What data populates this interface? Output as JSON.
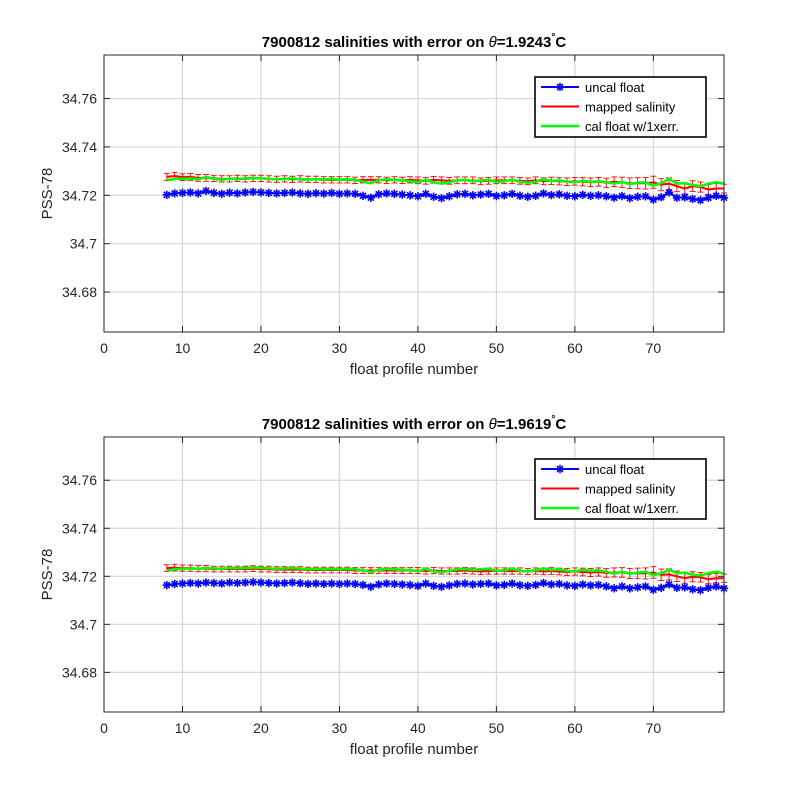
{
  "chart_data": [
    {
      "type": "line",
      "title": {
        "prefix": "7900812 salinities with error on ",
        "theta": "θ",
        "value": "=1.9243",
        "degree": "°",
        "unit": "C"
      },
      "xlabel": "float profile number",
      "ylabel": "PSS-78",
      "xlim": [
        0,
        79
      ],
      "ylim": [
        34.6635,
        34.778
      ],
      "xticks": [
        0,
        10,
        20,
        30,
        40,
        50,
        60,
        70
      ],
      "xtick_labels": [
        "0",
        "10",
        "20",
        "30",
        "40",
        "50",
        "60",
        "70"
      ],
      "yticks": [
        34.68,
        34.7,
        34.72,
        34.74,
        34.76
      ],
      "ytick_labels": [
        "34.68",
        "34.7",
        "34.72",
        "34.74",
        "34.76"
      ],
      "grid": true,
      "legend_position": "top-right",
      "legend": [
        "uncal float",
        "mapped salinity",
        "cal float w/1xerr."
      ],
      "colors": {
        "uncal": "#0000ff",
        "mapped": "#ff0000",
        "cal": "#00ff00"
      },
      "x_start": 8,
      "uncal_float": [
        34.7202,
        34.7208,
        34.721,
        34.7212,
        34.7208,
        34.7218,
        34.721,
        34.7206,
        34.7211,
        34.7208,
        34.7212,
        34.7214,
        34.7212,
        34.721,
        34.7208,
        34.721,
        34.7212,
        34.7208,
        34.7206,
        34.7209,
        34.7207,
        34.721,
        34.7206,
        34.7208,
        34.7206,
        34.7198,
        34.719,
        34.7204,
        34.7208,
        34.7206,
        34.7203,
        34.72,
        34.7196,
        34.7206,
        34.7194,
        34.7188,
        34.7196,
        34.7204,
        34.7206,
        34.72,
        34.7203,
        34.7206,
        34.7197,
        34.72,
        34.7206,
        34.7198,
        34.7194,
        34.7198,
        34.7208,
        34.7201,
        34.7204,
        34.7198,
        34.7196,
        34.7202,
        34.7198,
        34.72,
        34.7196,
        34.719,
        34.7197,
        34.7188,
        34.7194,
        34.7196,
        34.7182,
        34.7192,
        34.7212,
        34.719,
        34.7192,
        34.7185,
        34.718,
        34.719,
        34.7198,
        34.719
      ],
      "mapped_salinity": [
        34.7276,
        34.728,
        34.7275,
        34.7276,
        34.7272,
        34.7272,
        34.727,
        34.7268,
        34.7268,
        34.727,
        34.7268,
        34.727,
        34.727,
        34.7268,
        34.7266,
        34.7268,
        34.7266,
        34.7268,
        34.7266,
        34.7266,
        34.7264,
        34.7264,
        34.7264,
        34.7264,
        34.7262,
        34.7264,
        34.7264,
        34.7264,
        34.7262,
        34.7264,
        34.7262,
        34.7264,
        34.7262,
        34.726,
        34.7264,
        34.7262,
        34.726,
        34.7262,
        34.7262,
        34.7262,
        34.7258,
        34.726,
        34.7262,
        34.7262,
        34.7262,
        34.726,
        34.7258,
        34.7262,
        34.7258,
        34.726,
        34.7258,
        34.7256,
        34.7258,
        34.7256,
        34.7254,
        34.7256,
        34.7252,
        34.7256,
        34.7254,
        34.725,
        34.725,
        34.725,
        34.7254,
        34.7244,
        34.7248,
        34.7238,
        34.7228,
        34.7238,
        34.7234,
        34.7224,
        34.7228,
        34.7228
      ],
      "mapped_error": [
        0.0015,
        0.0015,
        0.0014,
        0.0014,
        0.0014,
        0.0014,
        0.0013,
        0.0013,
        0.0013,
        0.0013,
        0.0013,
        0.0013,
        0.0013,
        0.0013,
        0.0013,
        0.0013,
        0.0013,
        0.0013,
        0.0013,
        0.0013,
        0.0013,
        0.0013,
        0.0013,
        0.0013,
        0.0013,
        0.0013,
        0.0013,
        0.0013,
        0.0013,
        0.0013,
        0.0013,
        0.0013,
        0.0014,
        0.0014,
        0.0014,
        0.0014,
        0.0014,
        0.0014,
        0.0014,
        0.0014,
        0.0014,
        0.0014,
        0.0014,
        0.0014,
        0.0014,
        0.0014,
        0.0014,
        0.0014,
        0.0014,
        0.0015,
        0.0015,
        0.0016,
        0.0016,
        0.0017,
        0.0018,
        0.0018,
        0.0019,
        0.002,
        0.0021,
        0.0022,
        0.0023,
        0.0024,
        0.0025,
        0.0025,
        0.0024,
        0.0023,
        0.0022,
        0.0022,
        0.0021,
        0.002,
        0.002,
        0.0018
      ],
      "cal_float": [
        34.7262,
        34.7268,
        34.7268,
        34.727,
        34.7266,
        34.7276,
        34.7268,
        34.7264,
        34.7269,
        34.7266,
        34.727,
        34.7272,
        34.727,
        34.7268,
        34.7266,
        34.7268,
        34.727,
        34.7266,
        34.7264,
        34.7267,
        34.7265,
        34.7268,
        34.7264,
        34.7266,
        34.7264,
        34.7256,
        34.725,
        34.7262,
        34.7266,
        34.7264,
        34.7261,
        34.7258,
        34.7254,
        34.7264,
        34.7254,
        34.7248,
        34.7254,
        34.7262,
        34.7264,
        34.7258,
        34.7261,
        34.7264,
        34.7255,
        34.7258,
        34.7264,
        34.7256,
        34.7252,
        34.7256,
        34.7266,
        34.7259,
        34.7262,
        34.7256,
        34.7254,
        34.726,
        34.7256,
        34.7258,
        34.7254,
        34.7248,
        34.7255,
        34.7246,
        34.7252,
        34.7254,
        34.724,
        34.725,
        34.7268,
        34.7248,
        34.725,
        34.7243,
        34.7238,
        34.7248,
        34.7254,
        34.7248
      ]
    },
    {
      "type": "line",
      "title": {
        "prefix": "7900812 salinities with error on ",
        "theta": "θ",
        "value": "=1.9619",
        "degree": "°",
        "unit": "C"
      },
      "xlabel": "float profile number",
      "ylabel": "PSS-78",
      "xlim": [
        0,
        79
      ],
      "ylim": [
        34.6635,
        34.778
      ],
      "xticks": [
        0,
        10,
        20,
        30,
        40,
        50,
        60,
        70
      ],
      "xtick_labels": [
        "0",
        "10",
        "20",
        "30",
        "40",
        "50",
        "60",
        "70"
      ],
      "yticks": [
        34.68,
        34.7,
        34.72,
        34.74,
        34.76
      ],
      "ytick_labels": [
        "34.68",
        "34.7",
        "34.72",
        "34.74",
        "34.76"
      ],
      "grid": true,
      "legend_position": "top-right",
      "legend": [
        "uncal float",
        "mapped salinity",
        "cal float w/1xerr."
      ],
      "colors": {
        "uncal": "#0000ff",
        "mapped": "#ff0000",
        "cal": "#00ff00"
      },
      "x_start": 8,
      "uncal_float": [
        34.7163,
        34.7168,
        34.717,
        34.7172,
        34.717,
        34.7174,
        34.7172,
        34.717,
        34.7174,
        34.7172,
        34.7174,
        34.7176,
        34.7174,
        34.7172,
        34.717,
        34.7172,
        34.7174,
        34.7171,
        34.7168,
        34.717,
        34.7168,
        34.717,
        34.7168,
        34.717,
        34.7168,
        34.7164,
        34.7156,
        34.7166,
        34.717,
        34.7168,
        34.7166,
        34.7164,
        34.716,
        34.717,
        34.716,
        34.7156,
        34.7162,
        34.7168,
        34.717,
        34.7166,
        34.7168,
        34.717,
        34.7162,
        34.7164,
        34.717,
        34.7163,
        34.716,
        34.7164,
        34.7172,
        34.7166,
        34.7168,
        34.7162,
        34.716,
        34.7166,
        34.7162,
        34.7164,
        34.7158,
        34.715,
        34.7158,
        34.715,
        34.7154,
        34.7158,
        34.7144,
        34.7152,
        34.7166,
        34.7152,
        34.7154,
        34.7146,
        34.7142,
        34.7152,
        34.7158,
        34.715
      ],
      "mapped_salinity": [
        34.7234,
        34.7236,
        34.7234,
        34.7234,
        34.7232,
        34.7232,
        34.723,
        34.723,
        34.723,
        34.723,
        34.723,
        34.7232,
        34.723,
        34.723,
        34.7228,
        34.7228,
        34.7228,
        34.7228,
        34.7226,
        34.7226,
        34.7226,
        34.7226,
        34.7226,
        34.7226,
        34.7224,
        34.7224,
        34.7224,
        34.7224,
        34.7224,
        34.7224,
        34.7224,
        34.7224,
        34.7224,
        34.7222,
        34.7224,
        34.7222,
        34.7222,
        34.7222,
        34.7224,
        34.7222,
        34.722,
        34.7222,
        34.7222,
        34.7222,
        34.7222,
        34.7222,
        34.722,
        34.7222,
        34.722,
        34.7222,
        34.722,
        34.7218,
        34.722,
        34.7218,
        34.7216,
        34.7218,
        34.7214,
        34.7216,
        34.7216,
        34.7212,
        34.7212,
        34.7212,
        34.7216,
        34.7206,
        34.7208,
        34.72,
        34.7192,
        34.7198,
        34.7196,
        34.7188,
        34.7192,
        34.7192
      ],
      "mapped_error": [
        0.0014,
        0.0014,
        0.0013,
        0.0013,
        0.0013,
        0.0013,
        0.0012,
        0.0012,
        0.0012,
        0.0012,
        0.0012,
        0.0012,
        0.0012,
        0.0012,
        0.0012,
        0.0012,
        0.0012,
        0.0012,
        0.0012,
        0.0012,
        0.0012,
        0.0012,
        0.0012,
        0.0012,
        0.0012,
        0.0012,
        0.0012,
        0.0012,
        0.0012,
        0.0012,
        0.0012,
        0.0012,
        0.0013,
        0.0013,
        0.0013,
        0.0013,
        0.0013,
        0.0013,
        0.0013,
        0.0013,
        0.0013,
        0.0013,
        0.0013,
        0.0013,
        0.0013,
        0.0013,
        0.0013,
        0.0013,
        0.0013,
        0.0014,
        0.0014,
        0.0015,
        0.0015,
        0.0016,
        0.0017,
        0.0017,
        0.0018,
        0.0019,
        0.002,
        0.0021,
        0.0022,
        0.0023,
        0.0024,
        0.0024,
        0.0023,
        0.0022,
        0.0021,
        0.0021,
        0.002,
        0.0019,
        0.0019,
        0.0017
      ],
      "cal_float": [
        34.7224,
        34.7229,
        34.7231,
        34.7233,
        34.7231,
        34.7235,
        34.7233,
        34.7231,
        34.7235,
        34.7233,
        34.7235,
        34.7237,
        34.7235,
        34.7233,
        34.7231,
        34.7233,
        34.7235,
        34.7232,
        34.7229,
        34.7231,
        34.7229,
        34.7231,
        34.7229,
        34.7231,
        34.7229,
        34.7225,
        34.7217,
        34.7227,
        34.7231,
        34.7229,
        34.7227,
        34.7225,
        34.7221,
        34.7231,
        34.7221,
        34.7217,
        34.7223,
        34.7229,
        34.7231,
        34.7227,
        34.7229,
        34.7231,
        34.7223,
        34.7225,
        34.7231,
        34.7224,
        34.7221,
        34.7225,
        34.7233,
        34.7227,
        34.7229,
        34.7223,
        34.7221,
        34.7227,
        34.7223,
        34.7225,
        34.7219,
        34.7211,
        34.7219,
        34.7211,
        34.7215,
        34.7219,
        34.7205,
        34.7213,
        34.7227,
        34.7213,
        34.7215,
        34.7207,
        34.7203,
        34.7213,
        34.7219,
        34.7211
      ]
    }
  ]
}
